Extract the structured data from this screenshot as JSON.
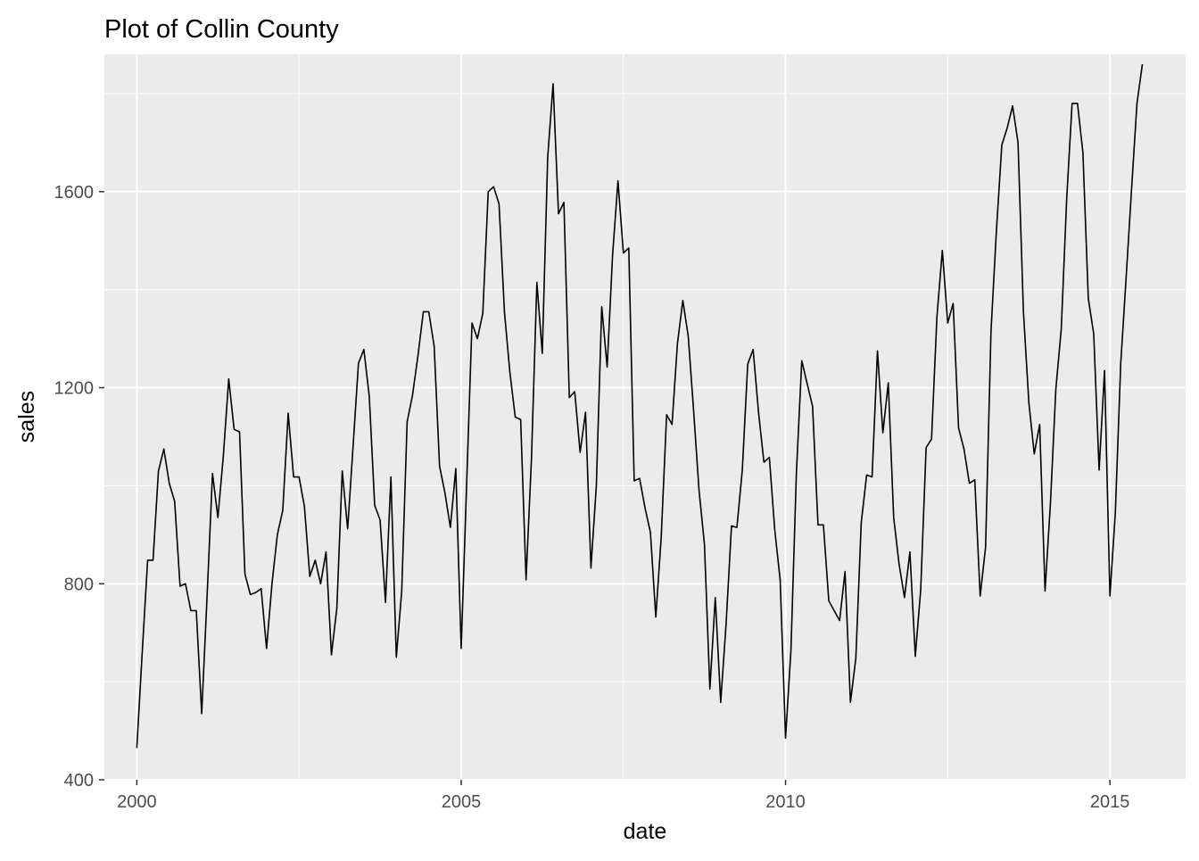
{
  "chart_data": {
    "type": "line",
    "title": "Plot of Collin County",
    "xlabel": "date",
    "ylabel": "sales",
    "x_ticks": [
      "2000",
      "2005",
      "2010",
      "2015"
    ],
    "y_ticks": [
      "400",
      "800",
      "1200",
      "1600"
    ],
    "ylim": [
      400,
      1880
    ],
    "xlim": [
      "1999-07",
      "2016-03"
    ],
    "grid": true,
    "panel_background": "#EBEBEB",
    "grid_color": "#FFFFFF",
    "line_color": "#000000",
    "x_start": "2000-01",
    "x_end": "2015-07",
    "x_interval": "monthly",
    "series": [
      {
        "values": [
          465,
          660,
          848,
          848,
          1030,
          1075,
          1005,
          968,
          795,
          800,
          745,
          745,
          535,
          775,
          1025,
          935,
          1060,
          1218,
          1115,
          1110,
          820,
          778,
          782,
          790,
          668,
          800,
          900,
          950,
          1148,
          1018,
          1018,
          958,
          815,
          848,
          800,
          865,
          655,
          750,
          1030,
          912,
          1080,
          1250,
          1278,
          1182,
          960,
          930,
          762,
          1018,
          650,
          785,
          1130,
          1185,
          1265,
          1355,
          1355,
          1285,
          1040,
          985,
          915,
          1035,
          668,
          1000,
          1332,
          1300,
          1352,
          1600,
          1610,
          1575,
          1355,
          1232,
          1140,
          1135,
          808,
          1055,
          1415,
          1270,
          1670,
          1820,
          1555,
          1578,
          1180,
          1192,
          1068,
          1150,
          832,
          1000,
          1365,
          1242,
          1470,
          1622,
          1475,
          1485,
          1010,
          1015,
          955,
          905,
          732,
          895,
          1145,
          1125,
          1290,
          1378,
          1305,
          1152,
          990,
          880,
          585,
          772,
          558,
          718,
          918,
          915,
          1032,
          1248,
          1278,
          1150,
          1048,
          1058,
          910,
          808,
          485,
          665,
          1025,
          1255,
          1208,
          1162,
          920,
          920,
          765,
          745,
          725,
          825,
          558,
          648,
          925,
          1022,
          1018,
          1275,
          1108,
          1210,
          935,
          840,
          772,
          865,
          652,
          788,
          1078,
          1095,
          1345,
          1480,
          1332,
          1372,
          1118,
          1075,
          1005,
          1012,
          775,
          875,
          1315,
          1520,
          1695,
          1730,
          1775,
          1700,
          1355,
          1170,
          1065,
          1125,
          785,
          965,
          1198,
          1320,
          1585,
          1780,
          1780,
          1680,
          1382,
          1310,
          1032,
          1235,
          775,
          945,
          1250,
          1425,
          1605,
          1780,
          1860
        ]
      }
    ]
  }
}
